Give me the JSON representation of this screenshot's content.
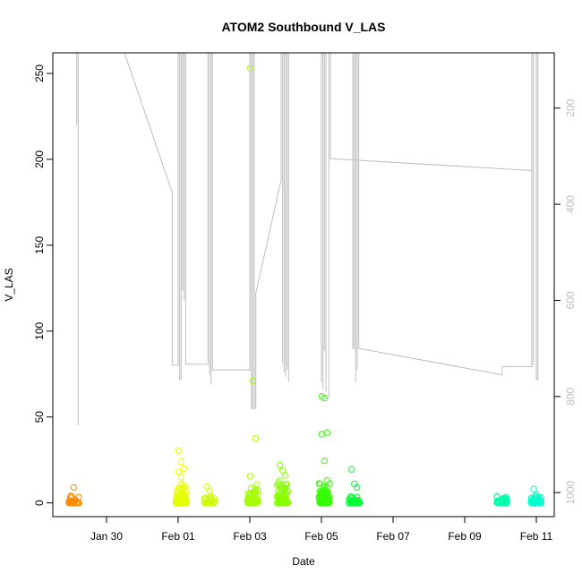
{
  "chart_data": {
    "type": "scatter",
    "title": "ATOM2 Southbound V_LAS",
    "xlabel": "Date",
    "ylabel": "V_LAS",
    "xlim": [
      "2020-01-28T12:00",
      "2020-02-11T12:00"
    ],
    "ylim": [
      -8,
      262
    ],
    "y_ticks": [
      0,
      50,
      100,
      150,
      200,
      250
    ],
    "x_ticks": [
      {
        "date": "2020-01-30",
        "label": "Jan 30"
      },
      {
        "date": "2020-02-01",
        "label": "Feb 01"
      },
      {
        "date": "2020-02-03",
        "label": "Feb 03"
      },
      {
        "date": "2020-02-05",
        "label": "Feb 05"
      },
      {
        "date": "2020-02-07",
        "label": "Feb 07"
      },
      {
        "date": "2020-02-09",
        "label": "Feb 09"
      },
      {
        "date": "2020-02-11",
        "label": "Feb 11"
      }
    ],
    "secondary_y": {
      "ticks": [
        200,
        400,
        600,
        800,
        1000
      ],
      "range": [
        85,
        1050
      ],
      "reversed": true,
      "color": "#bebebe"
    },
    "grid": false,
    "legend": "none",
    "clusters": [
      {
        "center": "2020-01-29T02:00",
        "color": "#ff8c00",
        "outliers": [
          4,
          9
        ]
      },
      {
        "center": "2020-02-01T02:00",
        "color": "#e6ff00",
        "outliers": [
          30.5,
          24,
          20,
          18,
          15
        ]
      },
      {
        "center": "2020-02-01T21:00",
        "color": "#ccff00",
        "outliers": [
          9.5,
          7
        ]
      },
      {
        "center": "2020-02-03T02:00",
        "color": "#a6ff00",
        "outliers": [
          253,
          71,
          37.5,
          15.5
        ]
      },
      {
        "center": "2020-02-03T22:00",
        "color": "#88ff00",
        "outliers": [
          22,
          19,
          16,
          13
        ]
      },
      {
        "center": "2020-02-05T02:00",
        "color": "#33ff00",
        "outliers": [
          62,
          61,
          41,
          40,
          24.5,
          13
        ]
      },
      {
        "center": "2020-02-05T22:00",
        "color": "#00ff33",
        "outliers": [
          19.5,
          11,
          9
        ]
      },
      {
        "center": "2020-02-10T01:00",
        "color": "#00ffaa",
        "outliers": []
      },
      {
        "center": "2020-02-11T00:00",
        "color": "#00ffcc",
        "outliers": [
          8,
          5
        ]
      }
    ],
    "secondary_series": {
      "name": "",
      "color": "#bebebe",
      "points": [
        [
          "2020-01-29T04:00",
          150
        ],
        [
          "2020-01-29T04:00",
          235
        ],
        [
          "2020-01-29T04:00",
          85
        ],
        [
          "2020-01-29T05:00",
          85
        ],
        [
          "2020-01-29T05:00",
          860
        ],
        [
          "2020-01-29T05:00",
          85
        ],
        [
          "2020-01-29T05:00",
          85
        ],
        [
          "2020-01-30T12:00",
          85
        ],
        [
          "2020-01-31T20:00",
          375
        ],
        [
          "2020-01-31T20:00",
          735
        ],
        [
          "2020-02-01T00:00",
          735
        ],
        [
          "2020-02-01T00:00",
          85
        ],
        [
          "2020-02-01T01:00",
          85
        ],
        [
          "2020-02-01T01:00",
          765
        ],
        [
          "2020-02-01T02:00",
          765
        ],
        [
          "2020-02-01T02:00",
          85
        ],
        [
          "2020-02-01T03:00",
          85
        ],
        [
          "2020-02-01T03:00",
          580
        ],
        [
          "2020-02-01T03:00",
          85
        ],
        [
          "2020-02-01T04:00",
          85
        ],
        [
          "2020-02-01T04:00",
          600
        ],
        [
          "2020-02-01T04:00",
          85
        ],
        [
          "2020-02-01T05:00",
          85
        ],
        [
          "2020-02-01T05:00",
          733
        ],
        [
          "2020-02-01T20:00",
          733
        ],
        [
          "2020-02-01T20:00",
          85
        ],
        [
          "2020-02-01T21:00",
          85
        ],
        [
          "2020-02-01T21:00",
          755
        ],
        [
          "2020-02-01T21:00",
          85
        ],
        [
          "2020-02-01T22:00",
          85
        ],
        [
          "2020-02-01T22:00",
          775
        ],
        [
          "2020-02-01T22:00",
          85
        ],
        [
          "2020-02-01T23:00",
          85
        ],
        [
          "2020-02-01T23:00",
          745
        ],
        [
          "2020-02-03T00:00",
          745
        ],
        [
          "2020-02-03T00:00",
          85
        ],
        [
          "2020-02-03T01:00",
          85
        ],
        [
          "2020-02-03T01:00",
          825
        ],
        [
          "2020-02-03T02:00",
          825
        ],
        [
          "2020-02-03T02:00",
          85
        ],
        [
          "2020-02-03T03:00",
          85
        ],
        [
          "2020-02-03T03:00",
          825
        ],
        [
          "2020-02-03T04:00",
          825
        ],
        [
          "2020-02-03T04:00",
          585
        ],
        [
          "2020-02-03T21:00",
          350
        ],
        [
          "2020-02-03T21:00",
          85
        ],
        [
          "2020-02-03T22:00",
          85
        ],
        [
          "2020-02-03T22:00",
          730
        ],
        [
          "2020-02-03T22:00",
          85
        ],
        [
          "2020-02-03T23:00",
          85
        ],
        [
          "2020-02-03T23:00",
          750
        ],
        [
          "2020-02-03T23:00",
          85
        ],
        [
          "2020-02-04T00:00",
          85
        ],
        [
          "2020-02-04T00:00",
          760
        ],
        [
          "2020-02-04T00:00",
          85
        ],
        [
          "2020-02-04T01:00",
          85
        ],
        [
          "2020-02-04T01:00",
          745
        ],
        [
          "2020-02-04T01:00",
          85
        ],
        [
          "2020-02-04T02:00",
          85
        ],
        [
          "2020-02-04T02:00",
          770
        ],
        [
          "2020-02-04T02:00",
          85
        ],
        [
          "2020-02-05T00:00",
          85
        ],
        [
          "2020-02-05T00:00",
          770
        ],
        [
          "2020-02-05T00:00",
          85
        ],
        [
          "2020-02-05T01:00",
          85
        ],
        [
          "2020-02-05T01:00",
          785
        ],
        [
          "2020-02-05T01:00",
          85
        ],
        [
          "2020-02-05T02:00",
          85
        ],
        [
          "2020-02-05T02:00",
          705
        ],
        [
          "2020-02-05T02:00",
          85
        ],
        [
          "2020-02-05T03:00",
          85
        ],
        [
          "2020-02-05T03:00",
          790
        ],
        [
          "2020-02-05T03:00",
          85
        ],
        [
          "2020-02-05T05:00",
          85
        ],
        [
          "2020-02-05T05:00",
          805
        ],
        [
          "2020-02-05T05:00",
          85
        ],
        [
          "2020-02-05T06:00",
          85
        ],
        [
          "2020-02-05T06:00",
          305
        ],
        [
          "2020-02-10T21:00",
          330
        ],
        [
          "2020-02-10T21:00",
          85
        ],
        [
          "2020-02-05T21:00",
          85
        ],
        [
          "2020-02-05T21:00",
          700
        ],
        [
          "2020-02-05T22:00",
          700
        ],
        [
          "2020-02-05T22:00",
          85
        ],
        [
          "2020-02-05T23:00",
          85
        ],
        [
          "2020-02-05T23:00",
          770
        ],
        [
          "2020-02-05T23:00",
          85
        ],
        [
          "2020-02-06T00:00",
          85
        ],
        [
          "2020-02-06T00:00",
          745
        ],
        [
          "2020-02-06T00:00",
          85
        ],
        [
          "2020-02-06T01:00",
          85
        ],
        [
          "2020-02-06T01:00",
          700
        ],
        [
          "2020-02-10T01:00",
          755
        ],
        [
          "2020-02-10T01:00",
          738
        ],
        [
          "2020-02-10T21:00",
          738
        ],
        [
          "2020-02-10T21:00",
          85
        ],
        [
          "2020-02-10T22:00",
          85
        ],
        [
          "2020-02-10T22:00",
          735
        ],
        [
          "2020-02-10T22:00",
          85
        ],
        [
          "2020-02-11T00:00",
          85
        ],
        [
          "2020-02-11T00:00",
          765
        ],
        [
          "2020-02-11T01:00",
          765
        ],
        [
          "2020-02-11T01:00",
          85
        ]
      ]
    }
  }
}
